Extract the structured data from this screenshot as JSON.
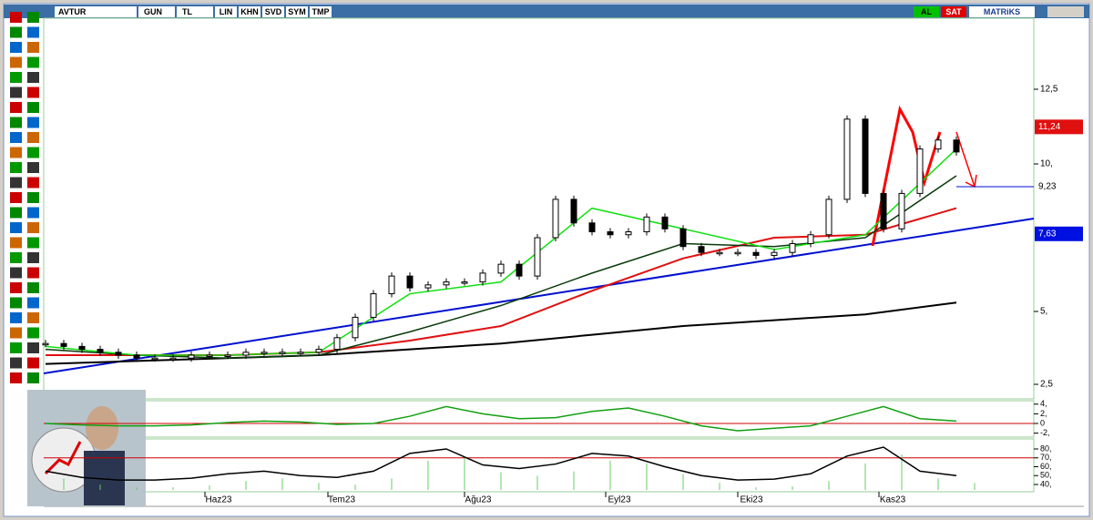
{
  "toolbar": {
    "symbol": "AVTUR",
    "period": "GUN",
    "currency": "TL",
    "buttons": [
      "LIN",
      "KHN",
      "SVD",
      "SYM",
      "TMP"
    ],
    "buy": "AL",
    "sell": "SAT",
    "brand": "MATRiKS"
  },
  "chart_data": {
    "type": "line",
    "x_labels": [
      "Haz23",
      "Tem23",
      "Ağu23",
      "Eyl23",
      "Eki23",
      "Kas23"
    ],
    "yticks": [
      {
        "value": 12.5,
        "label": "12,5"
      },
      {
        "value": 10,
        "label": "10,"
      },
      {
        "value": 5,
        "label": "5,"
      },
      {
        "value": 2.5,
        "label": "2,5"
      }
    ],
    "price_tags": [
      {
        "value": 11.24,
        "label": "11,24"
      },
      {
        "value": 9.23,
        "label": "9,23"
      },
      {
        "value": 7.63,
        "label": "7,63"
      }
    ],
    "close": [
      3.9,
      3.8,
      3.7,
      3.6,
      3.5,
      3.4,
      3.4,
      3.4,
      3.5,
      3.5,
      3.5,
      3.6,
      3.6,
      3.6,
      3.6,
      3.7,
      4.1,
      4.8,
      5.6,
      6.2,
      5.8,
      5.9,
      6.0,
      6.0,
      6.3,
      6.6,
      6.2,
      7.5,
      8.8,
      8.0,
      7.7,
      7.6,
      7.7,
      8.2,
      7.8,
      7.2,
      7.0,
      7.0,
      7.0,
      6.9,
      7.0,
      7.3,
      7.6,
      8.8,
      11.5,
      9.0,
      7.8,
      9.0,
      10.5,
      10.8,
      10.4
    ],
    "ma_short": [
      3.8,
      3.5,
      3.5,
      3.6,
      5.6,
      6.0,
      8.5,
      7.8,
      7.1,
      7.6,
      10.5
    ],
    "ma_mid": [
      3.7,
      3.5,
      3.4,
      3.5,
      4.3,
      5.2,
      6.3,
      7.3,
      7.2,
      7.5,
      9.6
    ],
    "ma_slow": [
      3.5,
      3.5,
      3.5,
      3.6,
      4.0,
      4.5,
      5.7,
      6.8,
      7.5,
      7.6,
      8.5
    ],
    "ma_long": [
      3.2,
      3.3,
      3.4,
      3.5,
      3.7,
      3.9,
      4.2,
      4.5,
      4.7,
      4.9,
      5.3
    ],
    "macd_ticks": [
      {
        "value": 4,
        "label": "4,"
      },
      {
        "value": 2,
        "label": "2,"
      },
      0,
      {
        "value": -2,
        "label": "-2,"
      }
    ],
    "macd": [
      0,
      -0.3,
      -0.5,
      -0.5,
      -0.3,
      0.2,
      0.5,
      0.3,
      -0.2,
      0,
      1.5,
      3.5,
      2,
      1,
      1.2,
      2.5,
      3.2,
      1.5,
      -0.5,
      -1.5,
      -1,
      -0.5,
      1.5,
      3.5,
      1,
      0.5
    ],
    "rsi_ticks": [
      {
        "value": 80,
        "label": "80,"
      },
      {
        "value": 70,
        "label": "70,"
      },
      {
        "value": 60,
        "label": "60,"
      },
      {
        "value": 50,
        "label": "50,"
      },
      {
        "value": 40,
        "label": "40,"
      }
    ],
    "rsi": [
      55,
      48,
      45,
      45,
      47,
      52,
      55,
      50,
      48,
      55,
      75,
      80,
      62,
      58,
      63,
      75,
      72,
      60,
      50,
      45,
      46,
      52,
      72,
      82,
      55,
      50
    ],
    "rsi_level": 70
  }
}
